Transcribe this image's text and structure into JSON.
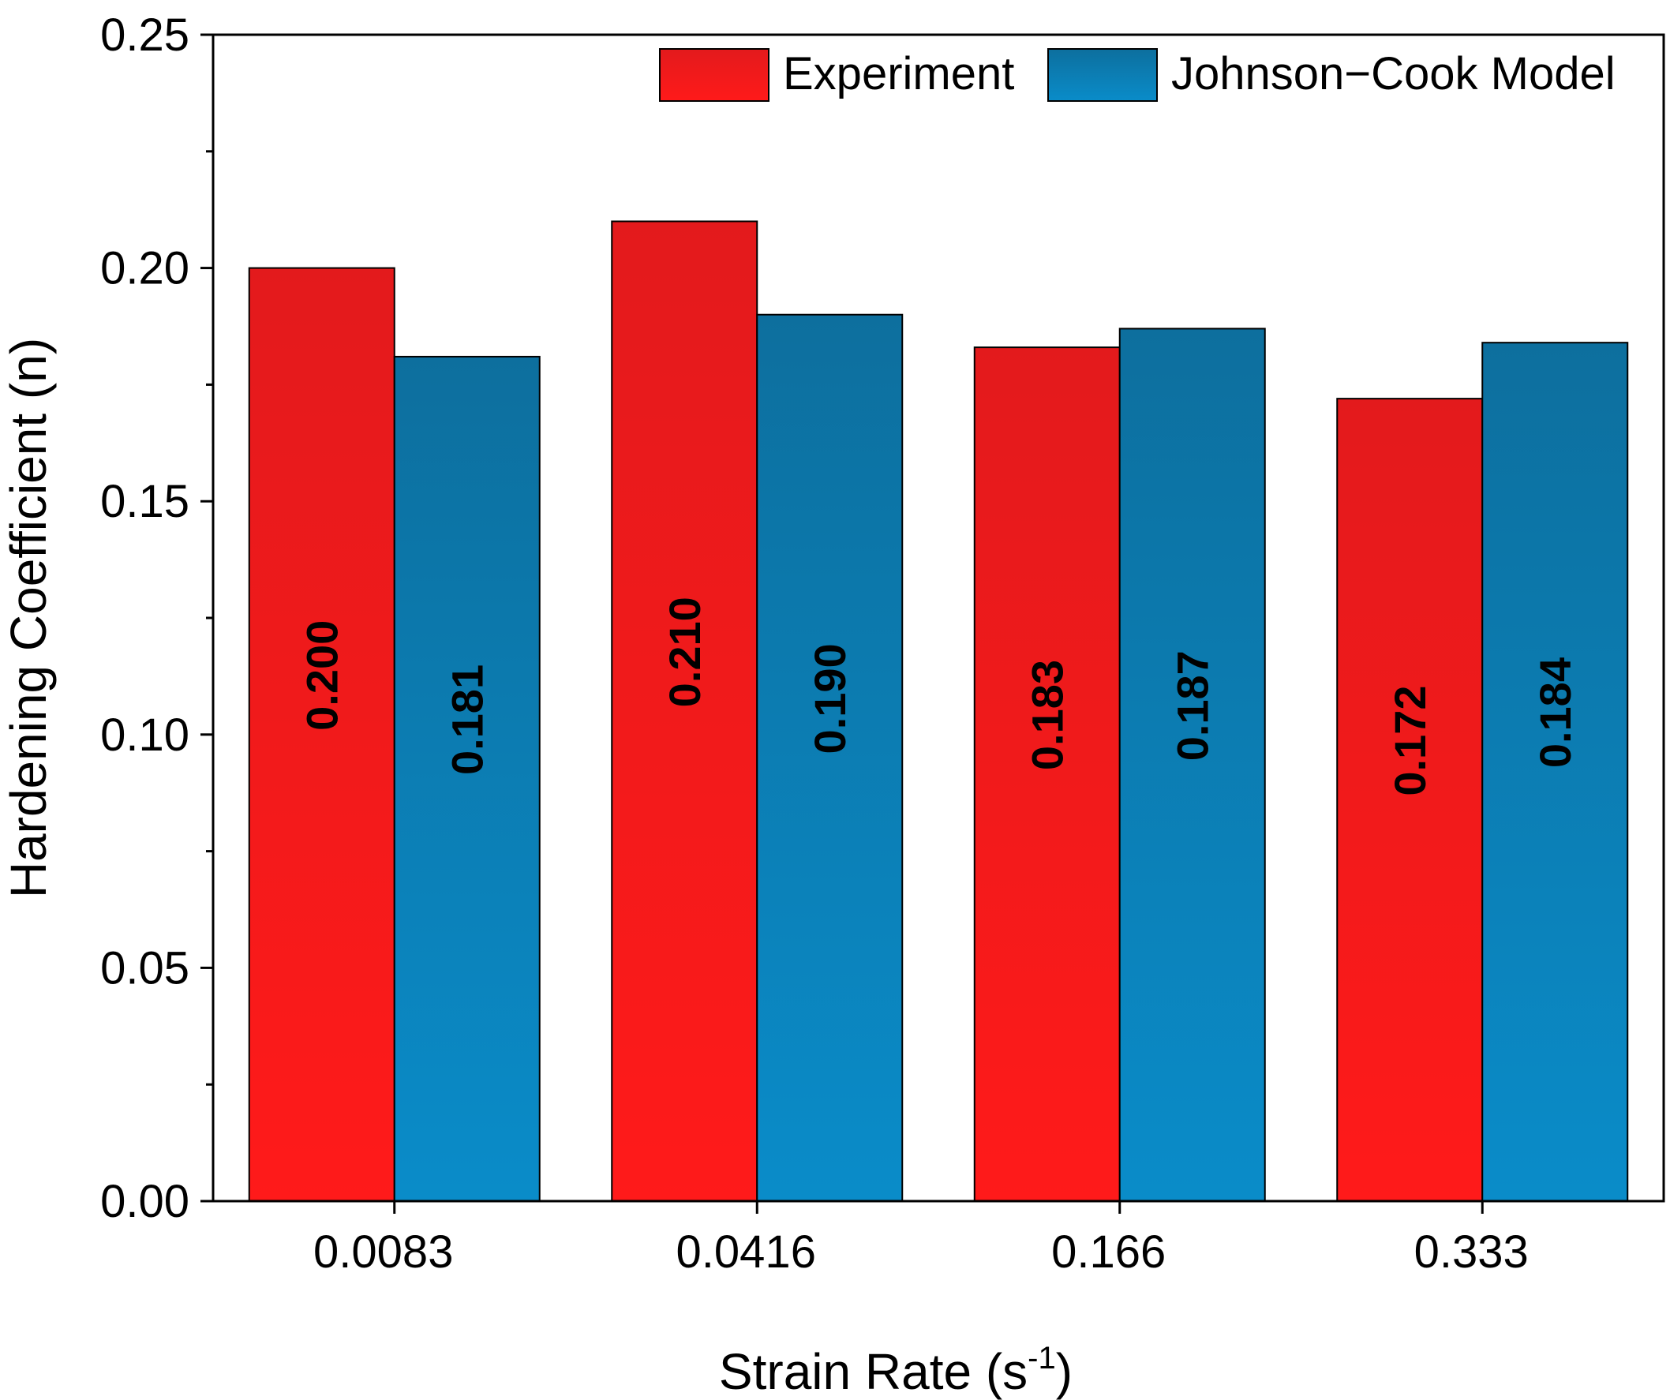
{
  "chart_data": {
    "type": "bar",
    "categories": [
      "0.0083",
      "0.0416",
      "0.166",
      "0.333"
    ],
    "series": [
      {
        "name": "Experiment",
        "values": [
          0.2,
          0.21,
          0.183,
          0.172
        ],
        "labels": [
          "0.200",
          "0.210",
          "0.183",
          "0.172"
        ],
        "color_top": "#e31a1c",
        "color_bottom": "#ff1a1a"
      },
      {
        "name": "Johnson−Cook Model",
        "values": [
          0.181,
          0.19,
          0.187,
          0.184
        ],
        "labels": [
          "0.181",
          "0.190",
          "0.187",
          "0.184"
        ],
        "color_top": "#0d6f9e",
        "color_bottom": "#0a8cc9"
      }
    ],
    "title": "",
    "xlabel": "Strain Rate (s",
    "xlabel_sup": "-1",
    "xlabel_end": ")",
    "ylabel": "Hardening Coefficient (n)",
    "ylim": [
      0,
      0.25
    ],
    "yticks": [
      "0.00",
      "0.05",
      "0.10",
      "0.15",
      "0.20",
      "0.25"
    ],
    "ytick_values": [
      0,
      0.05,
      0.1,
      0.15,
      0.2,
      0.25
    ],
    "legend_position": "top-right",
    "grid": false
  }
}
